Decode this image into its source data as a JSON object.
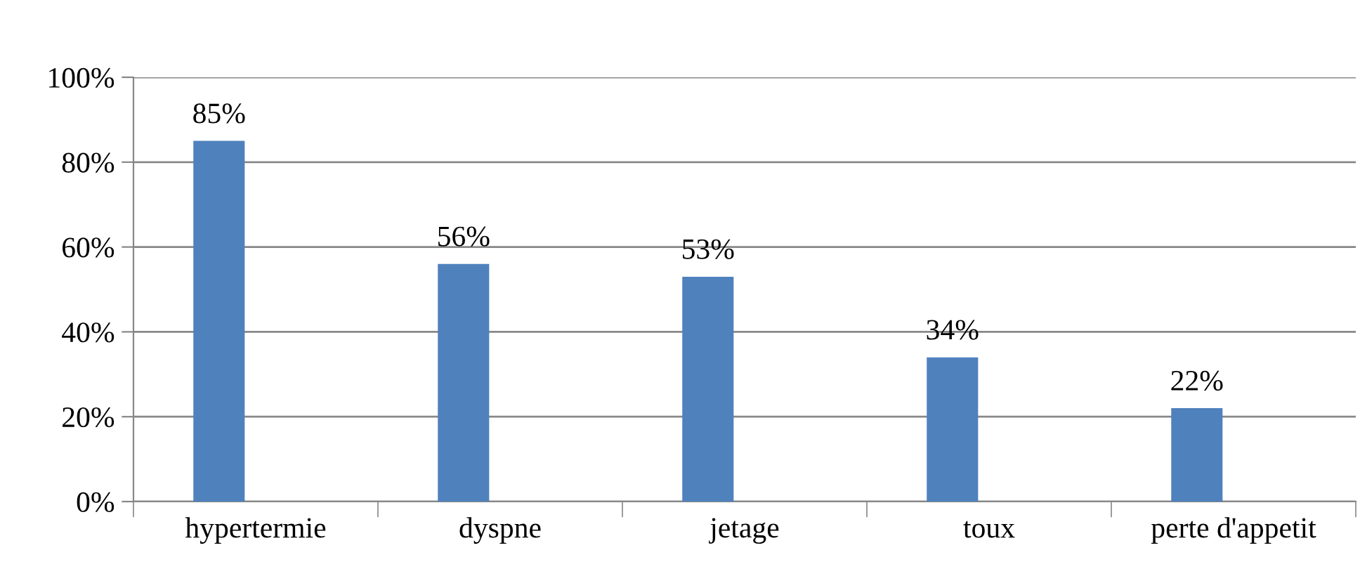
{
  "chart_data": {
    "type": "bar",
    "categories": [
      "hypertermie",
      "dyspne",
      "jetage",
      "toux",
      "perte d'appetit"
    ],
    "values": [
      85,
      56,
      53,
      34,
      22
    ],
    "color": "#4f81bd",
    "value_labels": [
      "85%",
      "56%",
      "53%",
      "34%",
      "22%"
    ],
    "ylim": [
      0,
      100
    ],
    "yticks": [
      {
        "value": 0,
        "label": "0%"
      },
      {
        "value": 20,
        "label": "20%"
      },
      {
        "value": 40,
        "label": "40%"
      },
      {
        "value": 60,
        "label": "60%"
      },
      {
        "value": 80,
        "label": "80%"
      },
      {
        "value": 100,
        "label": "100%"
      }
    ],
    "grid": "y",
    "legend": false
  }
}
